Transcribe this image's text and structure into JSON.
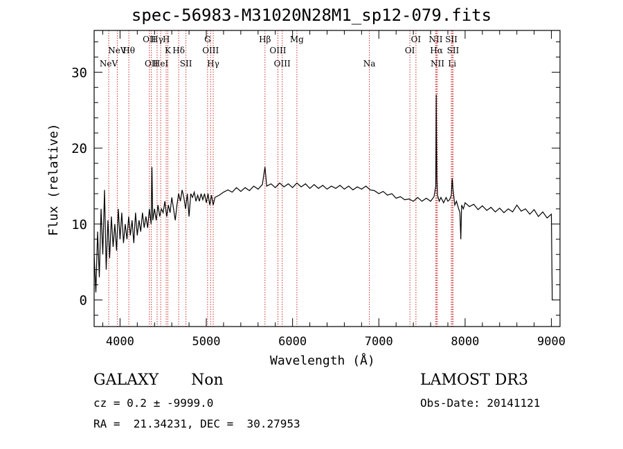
{
  "chart_data": {
    "type": "line",
    "title": "spec-56983-M31020N28M1_sp12-079.fits",
    "xlabel": "Wavelength (Å)",
    "ylabel": "Flux (relative)",
    "xlim": [
      3700,
      9100
    ],
    "ylim": [
      -3.5,
      35.5
    ],
    "xticks": [
      4000,
      5000,
      6000,
      7000,
      8000,
      9000
    ],
    "yticks": [
      0,
      10,
      20,
      30
    ],
    "series": [
      {
        "name": "spectrum",
        "points": [
          [
            3700,
            6.0
          ],
          [
            3720,
            1.0
          ],
          [
            3740,
            9.0
          ],
          [
            3760,
            3.0
          ],
          [
            3780,
            12.0
          ],
          [
            3800,
            6.0
          ],
          [
            3820,
            14.5
          ],
          [
            3840,
            4.0
          ],
          [
            3860,
            10.5
          ],
          [
            3880,
            5.5
          ],
          [
            3900,
            11.0
          ],
          [
            3920,
            7.0
          ],
          [
            3940,
            10.0
          ],
          [
            3960,
            6.5
          ],
          [
            3980,
            12.0
          ],
          [
            4000,
            8.0
          ],
          [
            4020,
            11.5
          ],
          [
            4040,
            7.5
          ],
          [
            4060,
            10.0
          ],
          [
            4080,
            8.0
          ],
          [
            4100,
            11.0
          ],
          [
            4120,
            8.5
          ],
          [
            4140,
            10.5
          ],
          [
            4160,
            7.5
          ],
          [
            4180,
            11.5
          ],
          [
            4200,
            8.5
          ],
          [
            4220,
            10.5
          ],
          [
            4240,
            9.0
          ],
          [
            4260,
            11.5
          ],
          [
            4280,
            9.5
          ],
          [
            4300,
            11.0
          ],
          [
            4320,
            9.5
          ],
          [
            4340,
            12.0
          ],
          [
            4360,
            10.0
          ],
          [
            4370,
            17.5
          ],
          [
            4380,
            10.5
          ],
          [
            4400,
            12.0
          ],
          [
            4420,
            10.5
          ],
          [
            4440,
            12.5
          ],
          [
            4460,
            11.0
          ],
          [
            4480,
            12.0
          ],
          [
            4500,
            11.5
          ],
          [
            4520,
            13.0
          ],
          [
            4540,
            11.0
          ],
          [
            4560,
            12.5
          ],
          [
            4580,
            11.5
          ],
          [
            4600,
            13.5
          ],
          [
            4620,
            12.0
          ],
          [
            4640,
            10.5
          ],
          [
            4660,
            12.5
          ],
          [
            4680,
            14.0
          ],
          [
            4700,
            13.0
          ],
          [
            4720,
            14.5
          ],
          [
            4740,
            13.5
          ],
          [
            4760,
            12.0
          ],
          [
            4780,
            14.0
          ],
          [
            4800,
            11.0
          ],
          [
            4820,
            14.0
          ],
          [
            4840,
            13.5
          ],
          [
            4860,
            14.2
          ],
          [
            4880,
            13.0
          ],
          [
            4900,
            13.8
          ],
          [
            4920,
            13.0
          ],
          [
            4940,
            14.0
          ],
          [
            4960,
            13.2
          ],
          [
            4980,
            14.0
          ],
          [
            5000,
            12.8
          ],
          [
            5020,
            14.0
          ],
          [
            5040,
            12.5
          ],
          [
            5060,
            13.8
          ],
          [
            5080,
            12.5
          ],
          [
            5100,
            13.5
          ],
          [
            5150,
            13.8
          ],
          [
            5200,
            14.2
          ],
          [
            5250,
            14.5
          ],
          [
            5300,
            14.2
          ],
          [
            5350,
            14.8
          ],
          [
            5400,
            14.3
          ],
          [
            5450,
            14.8
          ],
          [
            5500,
            14.4
          ],
          [
            5550,
            15.0
          ],
          [
            5600,
            14.6
          ],
          [
            5650,
            15.2
          ],
          [
            5680,
            17.5
          ],
          [
            5700,
            15.0
          ],
          [
            5750,
            15.3
          ],
          [
            5800,
            14.8
          ],
          [
            5850,
            15.4
          ],
          [
            5900,
            14.9
          ],
          [
            5950,
            15.3
          ],
          [
            6000,
            14.8
          ],
          [
            6050,
            15.4
          ],
          [
            6100,
            14.9
          ],
          [
            6150,
            15.3
          ],
          [
            6200,
            14.7
          ],
          [
            6250,
            15.2
          ],
          [
            6300,
            14.7
          ],
          [
            6350,
            15.1
          ],
          [
            6400,
            14.6
          ],
          [
            6450,
            15.0
          ],
          [
            6500,
            14.7
          ],
          [
            6550,
            15.1
          ],
          [
            6600,
            14.6
          ],
          [
            6650,
            15.0
          ],
          [
            6700,
            14.5
          ],
          [
            6750,
            14.9
          ],
          [
            6800,
            14.6
          ],
          [
            6850,
            15.0
          ],
          [
            6900,
            14.5
          ],
          [
            6950,
            14.4
          ],
          [
            7000,
            14.0
          ],
          [
            7050,
            14.3
          ],
          [
            7100,
            13.8
          ],
          [
            7150,
            14.0
          ],
          [
            7200,
            13.4
          ],
          [
            7250,
            13.6
          ],
          [
            7300,
            13.2
          ],
          [
            7350,
            13.3
          ],
          [
            7400,
            13.0
          ],
          [
            7450,
            13.5
          ],
          [
            7500,
            13.0
          ],
          [
            7550,
            13.4
          ],
          [
            7600,
            13.0
          ],
          [
            7640,
            13.6
          ],
          [
            7660,
            15.0
          ],
          [
            7665,
            27.0
          ],
          [
            7672,
            16.0
          ],
          [
            7680,
            13.8
          ],
          [
            7700,
            13.0
          ],
          [
            7720,
            13.5
          ],
          [
            7750,
            12.8
          ],
          [
            7780,
            13.5
          ],
          [
            7800,
            13.0
          ],
          [
            7820,
            13.2
          ],
          [
            7840,
            13.8
          ],
          [
            7850,
            16.0
          ],
          [
            7860,
            14.5
          ],
          [
            7880,
            12.5
          ],
          [
            7900,
            13.0
          ],
          [
            7920,
            12.2
          ],
          [
            7940,
            11.5
          ],
          [
            7950,
            8.0
          ],
          [
            7960,
            12.5
          ],
          [
            7980,
            12.0
          ],
          [
            8000,
            12.8
          ],
          [
            8050,
            12.3
          ],
          [
            8100,
            12.6
          ],
          [
            8150,
            11.9
          ],
          [
            8200,
            12.4
          ],
          [
            8250,
            11.8
          ],
          [
            8300,
            12.2
          ],
          [
            8350,
            11.6
          ],
          [
            8400,
            12.1
          ],
          [
            8450,
            11.5
          ],
          [
            8500,
            12.0
          ],
          [
            8550,
            11.6
          ],
          [
            8600,
            12.5
          ],
          [
            8650,
            11.7
          ],
          [
            8700,
            12.0
          ],
          [
            8750,
            11.3
          ],
          [
            8800,
            11.9
          ],
          [
            8850,
            11.0
          ],
          [
            8900,
            11.6
          ],
          [
            8950,
            10.8
          ],
          [
            9000,
            11.3
          ],
          [
            9010,
            0.0
          ]
        ]
      }
    ],
    "line_markers": [
      {
        "wavelength": 3869,
        "label": "NeV",
        "row": 3
      },
      {
        "wavelength": 3968,
        "label": "NeV",
        "row": 2
      },
      {
        "wavelength": 4340,
        "label": "OII",
        "row": 1
      },
      {
        "wavelength": 4363,
        "label": "OII",
        "row": 3
      },
      {
        "wavelength": 4102,
        "label": "Hθ",
        "row": 2
      },
      {
        "wavelength": 4430,
        "label": "Hγ",
        "row": 1
      },
      {
        "wavelength": 4471,
        "label": "HeI",
        "row": 3
      },
      {
        "wavelength": 4535,
        "label": "H",
        "row": 1
      },
      {
        "wavelength": 4554,
        "label": "K",
        "row": 2
      },
      {
        "wavelength": 4680,
        "label": "Hδ",
        "row": 2
      },
      {
        "wavelength": 4764,
        "label": "SII",
        "row": 3
      },
      {
        "wavelength": 5015,
        "label": "G",
        "row": 1
      },
      {
        "wavelength": 5050,
        "label": "OIII",
        "row": 2
      },
      {
        "wavelength": 5080,
        "label": "Hγ",
        "row": 3
      },
      {
        "wavelength": 5680,
        "label": "Hβ",
        "row": 1
      },
      {
        "wavelength": 5830,
        "label": "OIII",
        "row": 2
      },
      {
        "wavelength": 5880,
        "label": "OIII",
        "row": 3
      },
      {
        "wavelength": 6050,
        "label": "Mg",
        "row": 1
      },
      {
        "wavelength": 6890,
        "label": "Na",
        "row": 3
      },
      {
        "wavelength": 7360,
        "label": "OI",
        "row": 2
      },
      {
        "wavelength": 7430,
        "label": "OI",
        "row": 1
      },
      {
        "wavelength": 7660,
        "label": "NII",
        "row": 1
      },
      {
        "wavelength": 7668,
        "label": "Hα",
        "row": 2
      },
      {
        "wavelength": 7680,
        "label": "NII",
        "row": 3
      },
      {
        "wavelength": 7840,
        "label": "SII",
        "row": 1
      },
      {
        "wavelength": 7860,
        "label": "SII",
        "row": 2
      },
      {
        "wavelength": 7850,
        "label": "Li",
        "row": 3
      }
    ]
  },
  "info": {
    "object_class": "GALAXY",
    "subclass": "Non",
    "survey": "LAMOST DR3",
    "cz_line": "cz = 0.2 ± -9999.0",
    "obs_date": "Obs-Date: 20141121",
    "coords_line": "RA =  21.34231, DEC =  30.27953"
  }
}
